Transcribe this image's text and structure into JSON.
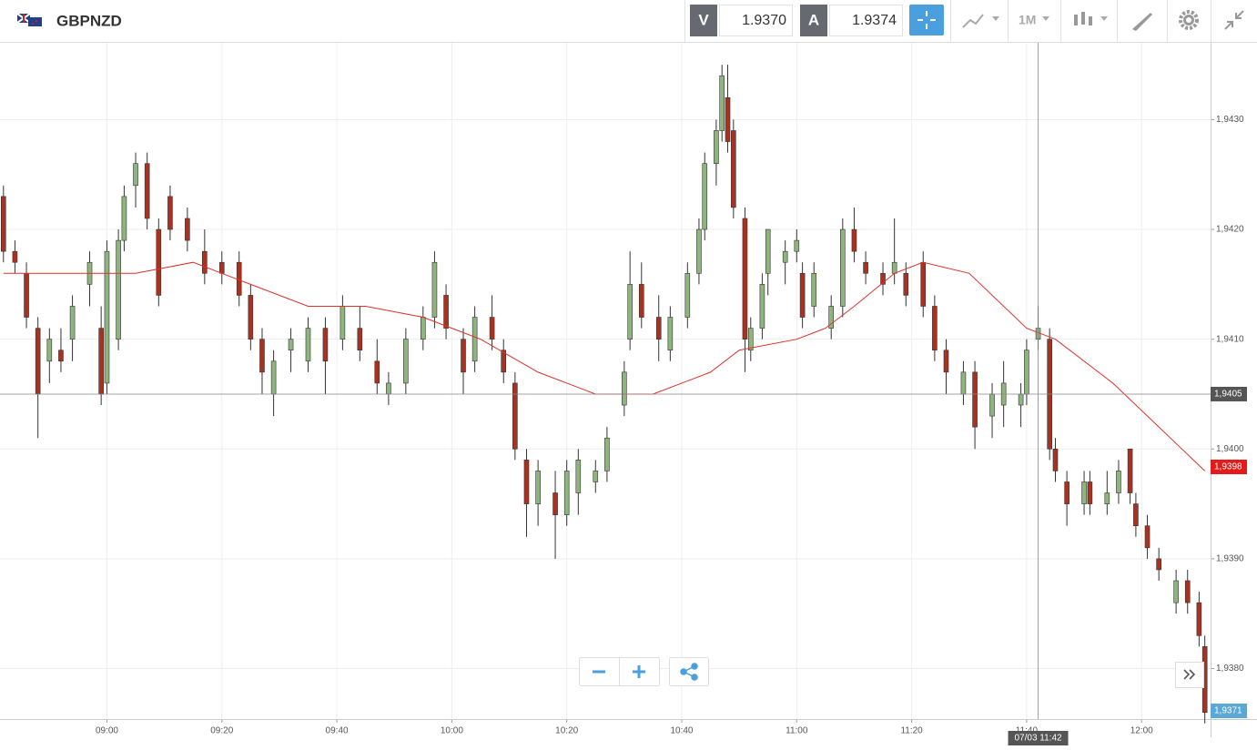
{
  "header": {
    "symbol": "GBPNZD",
    "sell_label": "V",
    "sell_price": "1.9370",
    "buy_label": "A",
    "buy_price": "1.9374",
    "timeframe": "1M"
  },
  "chart_data": {
    "type": "candlestick",
    "xlim": [
      521.4,
      732
    ],
    "ylim": [
      1.93754,
      1.9437
    ],
    "xticks": [
      {
        "value": 540,
        "label": "09:00"
      },
      {
        "value": 560,
        "label": "09:20"
      },
      {
        "value": 580,
        "label": "09:40"
      },
      {
        "value": 600,
        "label": "10:00"
      },
      {
        "value": 620,
        "label": "10:20"
      },
      {
        "value": 640,
        "label": "10:40"
      },
      {
        "value": 660,
        "label": "11:00"
      },
      {
        "value": 680,
        "label": "11:20"
      },
      {
        "value": 700,
        "label": "11:40"
      },
      {
        "value": 720,
        "label": "12:00"
      }
    ],
    "yticks": [
      {
        "value": 1.938,
        "label": "1,9380"
      },
      {
        "value": 1.939,
        "label": "1,9390"
      },
      {
        "value": 1.94,
        "label": "1,9400"
      },
      {
        "value": 1.941,
        "label": "1,9410"
      },
      {
        "value": 1.942,
        "label": "1,9420"
      },
      {
        "value": 1.943,
        "label": "1,9430"
      }
    ],
    "grid": true,
    "up_color": "#8fb57f",
    "down_color": "#a8321f",
    "candles": {
      "x": [
        522,
        524,
        526,
        528,
        530,
        532,
        534,
        537,
        539,
        540,
        542,
        543,
        545,
        547,
        549,
        551,
        554,
        557,
        560,
        563,
        565,
        567,
        569,
        572,
        575,
        578,
        581,
        584,
        587,
        589,
        592,
        595,
        597,
        599,
        602,
        604,
        607,
        609,
        611,
        613,
        615,
        618,
        620,
        622,
        625,
        627,
        630,
        631,
        633,
        636,
        638,
        641,
        643,
        644,
        646,
        647,
        648,
        649,
        651,
        652,
        654,
        655,
        658,
        660,
        661,
        663,
        666,
        668,
        670,
        672,
        675,
        677,
        679,
        682,
        684,
        686,
        689,
        691,
        694,
        696,
        699,
        700,
        702,
        704,
        705,
        707,
        710,
        711,
        714,
        716,
        718,
        719,
        721,
        723,
        726,
        728,
        730,
        731
      ],
      "open": [
        1.9423,
        1.9418,
        1.9416,
        1.9411,
        1.9408,
        1.9409,
        1.941,
        1.9415,
        1.9411,
        1.9406,
        1.941,
        1.9419,
        1.9424,
        1.9426,
        1.942,
        1.9423,
        1.9421,
        1.9418,
        1.9417,
        1.9417,
        1.9414,
        1.941,
        1.9405,
        1.9409,
        1.9408,
        1.9411,
        1.941,
        1.9411,
        1.9408,
        1.9405,
        1.9406,
        1.941,
        1.9412,
        1.9414,
        1.941,
        1.9408,
        1.9412,
        1.9409,
        1.9406,
        1.9399,
        1.9395,
        1.9396,
        1.9394,
        1.9396,
        1.9397,
        1.9398,
        1.9404,
        1.941,
        1.9415,
        1.9412,
        1.9409,
        1.9412,
        1.9416,
        1.942,
        1.9426,
        1.9429,
        1.9432,
        1.9429,
        1.9421,
        1.9409,
        1.9411,
        1.9416,
        1.9417,
        1.9418,
        1.9416,
        1.9413,
        1.9411,
        1.9413,
        1.942,
        1.9417,
        1.9416,
        1.9416,
        1.9416,
        1.9417,
        1.9413,
        1.9409,
        1.9405,
        1.9407,
        1.9403,
        1.9404,
        1.9404,
        1.9405,
        1.941,
        1.941,
        1.94,
        1.9397,
        1.9395,
        1.9397,
        1.9395,
        1.9396,
        1.94,
        1.9395,
        1.9393,
        1.939,
        1.9386,
        1.9388,
        1.9386,
        1.9382
      ],
      "high": [
        1.9424,
        1.9419,
        1.9417,
        1.9412,
        1.9411,
        1.9411,
        1.9414,
        1.9418,
        1.9413,
        1.9419,
        1.942,
        1.9424,
        1.9427,
        1.9427,
        1.9421,
        1.9424,
        1.9422,
        1.942,
        1.9418,
        1.9418,
        1.9415,
        1.9411,
        1.9409,
        1.9411,
        1.9412,
        1.9412,
        1.9414,
        1.9413,
        1.941,
        1.9407,
        1.9411,
        1.9413,
        1.9418,
        1.9415,
        1.9411,
        1.9413,
        1.9414,
        1.941,
        1.9407,
        1.94,
        1.9399,
        1.9398,
        1.9399,
        1.94,
        1.9399,
        1.9402,
        1.9408,
        1.9418,
        1.9417,
        1.9414,
        1.9413,
        1.9417,
        1.9421,
        1.9427,
        1.943,
        1.9435,
        1.9435,
        1.943,
        1.9422,
        1.9412,
        1.9416,
        1.942,
        1.9419,
        1.942,
        1.9417,
        1.9417,
        1.9414,
        1.9421,
        1.9422,
        1.9418,
        1.9417,
        1.9421,
        1.9417,
        1.9418,
        1.9414,
        1.941,
        1.9408,
        1.9408,
        1.9406,
        1.9408,
        1.9406,
        1.941,
        1.9413,
        1.9411,
        1.9401,
        1.9398,
        1.9398,
        1.9398,
        1.9398,
        1.9399,
        1.94,
        1.9396,
        1.9394,
        1.9391,
        1.9389,
        1.9389,
        1.9387,
        1.9383
      ],
      "low": [
        1.9417,
        1.9416,
        1.9411,
        1.9401,
        1.9406,
        1.9407,
        1.9408,
        1.9413,
        1.9404,
        1.9405,
        1.9409,
        1.9418,
        1.9422,
        1.942,
        1.9413,
        1.9419,
        1.9418,
        1.9415,
        1.9415,
        1.9413,
        1.9409,
        1.9405,
        1.9403,
        1.9407,
        1.9407,
        1.9405,
        1.9409,
        1.9408,
        1.9405,
        1.9404,
        1.9405,
        1.9409,
        1.9411,
        1.941,
        1.9405,
        1.9407,
        1.9409,
        1.9406,
        1.9399,
        1.9392,
        1.9393,
        1.939,
        1.9393,
        1.9394,
        1.9396,
        1.9397,
        1.9403,
        1.9409,
        1.9411,
        1.9408,
        1.9408,
        1.9411,
        1.9415,
        1.9419,
        1.9424,
        1.9428,
        1.9427,
        1.9421,
        1.9407,
        1.9408,
        1.941,
        1.9414,
        1.9415,
        1.9417,
        1.9411,
        1.9412,
        1.941,
        1.9412,
        1.9417,
        1.9415,
        1.9414,
        1.9415,
        1.9413,
        1.9412,
        1.9408,
        1.9405,
        1.9404,
        1.94,
        1.9401,
        1.9402,
        1.9402,
        1.9404,
        1.9409,
        1.9399,
        1.9397,
        1.9393,
        1.9394,
        1.9394,
        1.9394,
        1.9395,
        1.9395,
        1.9392,
        1.939,
        1.9388,
        1.9385,
        1.9385,
        1.9382,
        1.9375
      ],
      "close": [
        1.9418,
        1.9417,
        1.9412,
        1.9405,
        1.941,
        1.9408,
        1.9413,
        1.9417,
        1.9405,
        1.9418,
        1.9419,
        1.9423,
        1.9426,
        1.9421,
        1.9414,
        1.942,
        1.9419,
        1.9416,
        1.9416,
        1.9414,
        1.941,
        1.9407,
        1.9408,
        1.941,
        1.9411,
        1.9408,
        1.9413,
        1.9409,
        1.9406,
        1.9406,
        1.941,
        1.9412,
        1.9417,
        1.9411,
        1.9407,
        1.9412,
        1.941,
        1.9407,
        1.94,
        1.9395,
        1.9398,
        1.9394,
        1.9398,
        1.9399,
        1.9398,
        1.9401,
        1.9407,
        1.9415,
        1.9412,
        1.941,
        1.9412,
        1.9416,
        1.942,
        1.9426,
        1.9429,
        1.9434,
        1.9428,
        1.9422,
        1.941,
        1.9411,
        1.9415,
        1.942,
        1.9418,
        1.9419,
        1.9412,
        1.9416,
        1.9413,
        1.942,
        1.9418,
        1.9416,
        1.9415,
        1.9417,
        1.9414,
        1.9413,
        1.9409,
        1.9407,
        1.9407,
        1.9402,
        1.9405,
        1.9406,
        1.9405,
        1.9409,
        1.9411,
        1.94,
        1.9398,
        1.9395,
        1.9397,
        1.9395,
        1.9396,
        1.9398,
        1.9396,
        1.9393,
        1.9391,
        1.9389,
        1.9388,
        1.9386,
        1.9383,
        1.9376
      ]
    },
    "moving_average": {
      "color": "#e0302a",
      "x": [
        522,
        530,
        545,
        555,
        565,
        575,
        585,
        595,
        605,
        615,
        625,
        635,
        645,
        650,
        660,
        665,
        670,
        677,
        682,
        690,
        700,
        705,
        715,
        725,
        731
      ],
      "values": [
        1.9416,
        1.9416,
        1.9416,
        1.9417,
        1.9415,
        1.9413,
        1.9413,
        1.9412,
        1.941,
        1.9407,
        1.9405,
        1.9405,
        1.9407,
        1.9409,
        1.941,
        1.9411,
        1.9413,
        1.9416,
        1.9417,
        1.9416,
        1.9411,
        1.941,
        1.9406,
        1.9401,
        1.9398
      ]
    },
    "crosshair": {
      "x": 702,
      "y": 1.9405,
      "x_label": "07/03 11:42",
      "y_label": "1,9405"
    },
    "sell_tag": "1,9398",
    "bid_tag": "1,9371"
  }
}
